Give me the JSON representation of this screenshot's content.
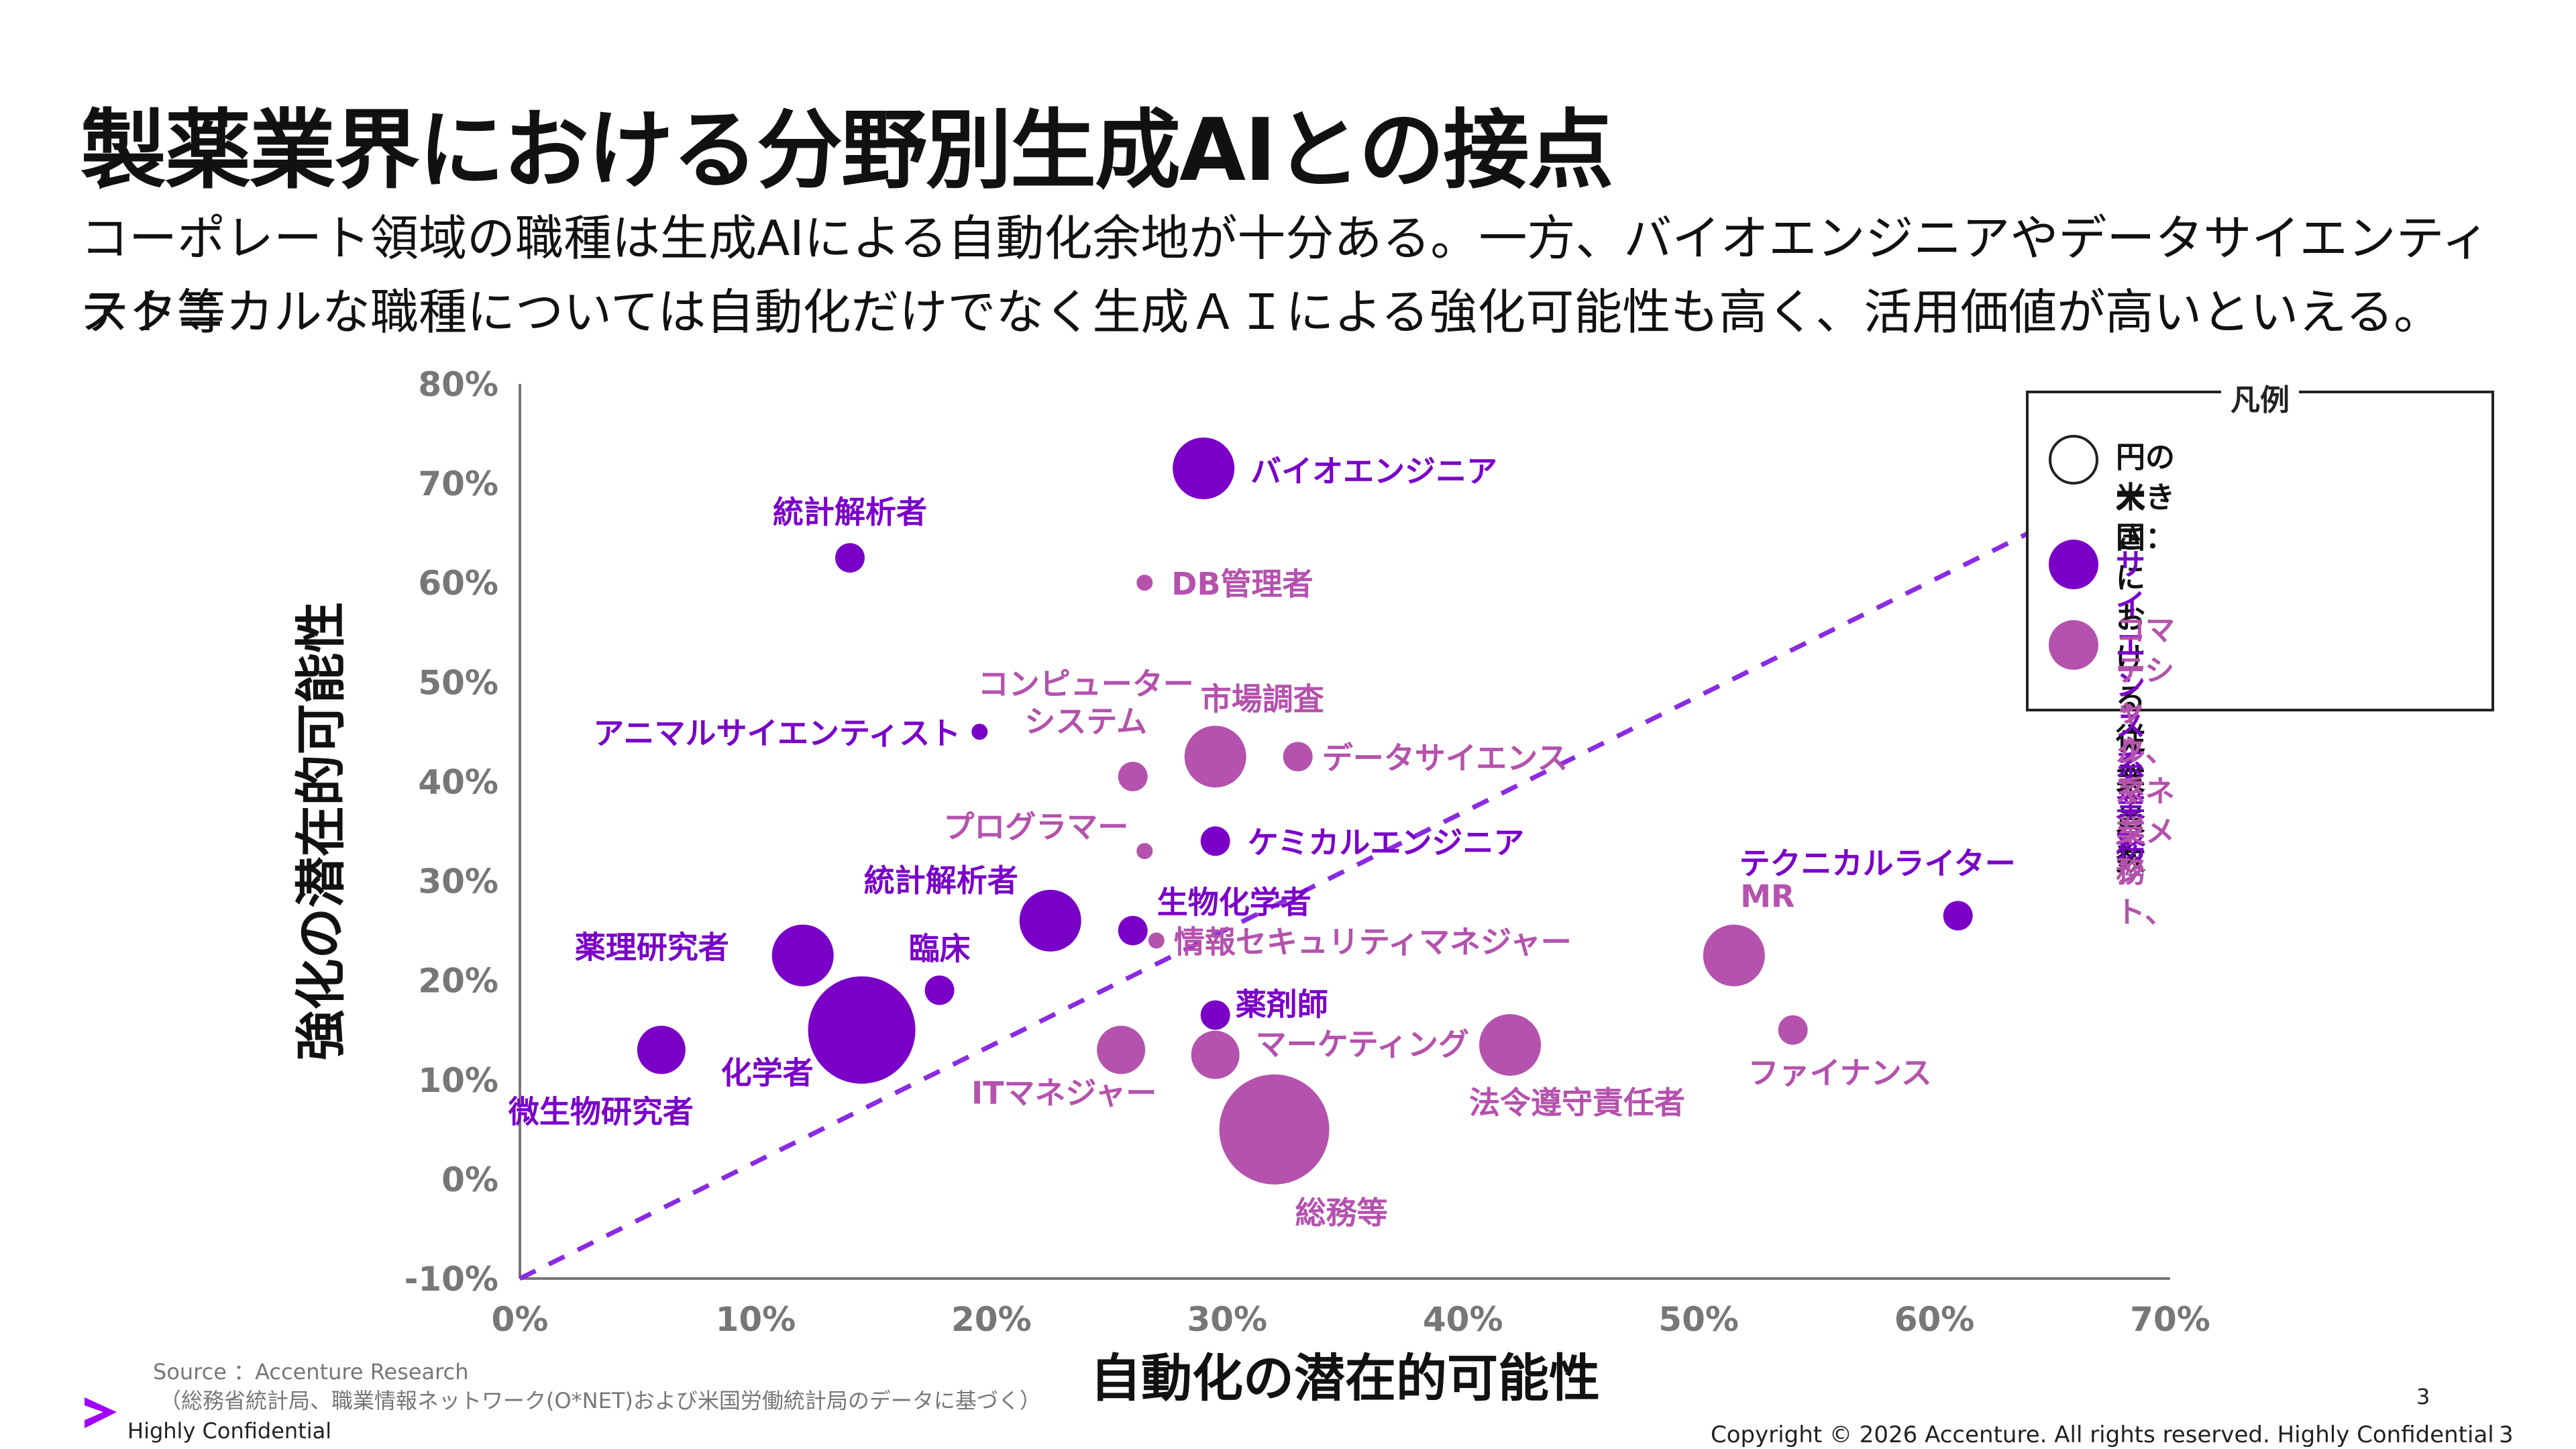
{
  "title": "製薬業界における分野別生成AIとの接点",
  "subtitle": {
    "line1": "コーポレート領域の職種は生成AIによる自動化余地が十分ある。一方、バイオエンジニアやデータサイエンティスト等",
    "line2": "テクニカルな職種については自動化だけでなく生成ＡＩによる強化可能性も高く、活用価値が高いといえる。"
  },
  "colors": {
    "science": "#7a00c8",
    "commercial": "#b452ad",
    "text": "#111111",
    "axis": "#777777"
  },
  "chart_data": {
    "type": "scatter",
    "xlabel": "自動化の潜在的可能性",
    "ylabel": "強化の潜在的可能性",
    "xlim": [
      0,
      70
    ],
    "ylim": [
      -10,
      80
    ],
    "x_ticks": [
      "0%",
      "10%",
      "20%",
      "30%",
      "40%",
      "50%",
      "60%",
      "70%"
    ],
    "y_ticks": [
      "80%",
      "70%",
      "60%",
      "50%",
      "40%",
      "30%",
      "20%",
      "10%",
      "0%",
      "-10%"
    ],
    "diagonal_line": {
      "from": [
        0,
        -10
      ],
      "to": [
        64,
        65
      ],
      "style": "dashed",
      "color": "#8a2be2"
    },
    "series": [
      {
        "name": "サイエンス系業務",
        "color": "#7a00c8",
        "points": [
          {
            "label": "バイオエンジニア",
            "x": 29.0,
            "y": 71.5,
            "size": "medium"
          },
          {
            "label": "統計解析者",
            "x": 14.0,
            "y": 62.5,
            "size": "small"
          },
          {
            "label": "アニマルサイエンティスト",
            "x": 19.5,
            "y": 45.0,
            "size": "tiny"
          },
          {
            "label": "ケミカルエンジニア",
            "x": 29.5,
            "y": 34.0,
            "size": "small"
          },
          {
            "label": "統計解析者",
            "x": 22.5,
            "y": 26.0,
            "size": "medium"
          },
          {
            "label": "生物化学者",
            "x": 26.0,
            "y": 25.0,
            "size": "small"
          },
          {
            "label": "薬理研究者",
            "x": 12.0,
            "y": 22.5,
            "size": "medium"
          },
          {
            "label": "臨床",
            "x": 17.8,
            "y": 19.0,
            "size": "small"
          },
          {
            "label": "化学者",
            "x": 14.5,
            "y": 15.0,
            "size": "large"
          },
          {
            "label": "微生物研究者",
            "x": 6.0,
            "y": 13.0,
            "size": "small-medium"
          },
          {
            "label": "薬剤師",
            "x": 29.5,
            "y": 16.5,
            "size": "small"
          },
          {
            "label": "テクニカルライター",
            "x": 61.0,
            "y": 26.5,
            "size": "small"
          }
        ]
      },
      {
        "name": "コマーシャル、マネジメント、テック系業務",
        "color": "#b452ad",
        "points": [
          {
            "label": "DB管理者",
            "x": 26.5,
            "y": 60.0,
            "size": "tiny"
          },
          {
            "label": "コンピューター\nシステム",
            "x": 26.0,
            "y": 40.5,
            "size": "small"
          },
          {
            "label": "市場調査",
            "x": 29.5,
            "y": 42.5,
            "size": "medium"
          },
          {
            "label": "データサイエンス",
            "x": 33.0,
            "y": 42.5,
            "size": "small"
          },
          {
            "label": "プログラマー",
            "x": 26.5,
            "y": 33.0,
            "size": "tiny"
          },
          {
            "label": "情報セキュリティマネジャー",
            "x": 27.0,
            "y": 24.0,
            "size": "tiny"
          },
          {
            "label": "MR",
            "x": 51.5,
            "y": 22.5,
            "size": "medium"
          },
          {
            "label": "ファイナンス",
            "x": 54.0,
            "y": 15.0,
            "size": "small"
          },
          {
            "label": "ITマネジャー",
            "x": 25.5,
            "y": 13.0,
            "size": "small-medium"
          },
          {
            "label": "マーケティング",
            "x": 29.5,
            "y": 12.5,
            "size": "small-medium"
          },
          {
            "label": "法令遵守責任者",
            "x": 42.0,
            "y": 13.5,
            "size": "medium"
          },
          {
            "label": "総務等",
            "x": 32.0,
            "y": 5.0,
            "size": "xlarge"
          }
        ]
      }
    ],
    "legend": {
      "title": "凡例",
      "size_note_1": "円の大きさ：",
      "size_note_2": "米国における従業員数",
      "item_science": "サイエンス系業務",
      "item_commercial_1": "コマーシャル、マネジメント、",
      "item_commercial_2": "テック系業務",
      "placement": "top-right"
    }
  },
  "footer": {
    "source": "Source ：Accenture Research",
    "source_detail": "（総務省統計局、職業情報ネットワーク(O*NET)および米国労働統計局のデータに基づく）",
    "confidential": "Highly Confidential",
    "page_number": "3",
    "copyright": "Copyright © 2026 Accenture. All rights reserved. Highly Confidential",
    "page_number_right": "3"
  }
}
